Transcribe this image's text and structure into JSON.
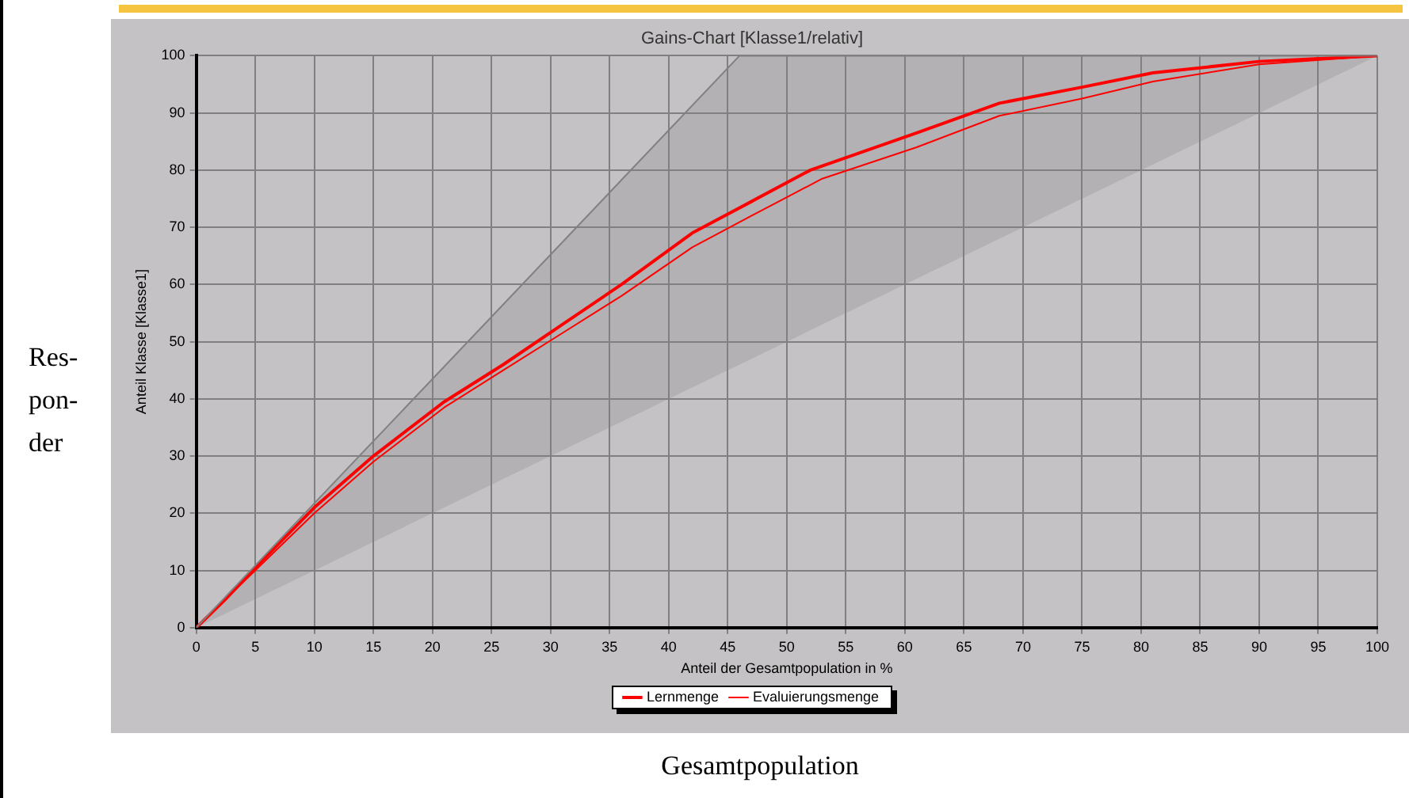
{
  "chart_data": {
    "type": "line",
    "title": "Gains-Chart [Klasse1/relativ]",
    "xlabel": "Anteil der Gesamtpopulation in %",
    "ylabel": "Anteil Klasse [Klasse1]",
    "xlim": [
      0,
      100
    ],
    "ylim": [
      0,
      100
    ],
    "xticks": [
      0,
      5,
      10,
      15,
      20,
      25,
      30,
      35,
      40,
      45,
      50,
      55,
      60,
      65,
      70,
      75,
      80,
      85,
      90,
      95,
      100
    ],
    "yticks": [
      0,
      10,
      20,
      30,
      40,
      50,
      60,
      70,
      80,
      90,
      100
    ],
    "grid": true,
    "legend": "bottom",
    "marker": "none",
    "line_style": "solid",
    "series": [
      {
        "color": "#808080",
        "x": [
          0,
          46,
          100
        ],
        "values": [
          0,
          100,
          100
        ],
        "lower": [
          0,
          46,
          100
        ],
        "upper": [
          0,
          100,
          100
        ]
      },
      {
        "name": "Lernmenge",
        "color": "#ff0000",
        "x": [
          0,
          2.5,
          5,
          10,
          15,
          21,
          26,
          31,
          36,
          42,
          47,
          52,
          61,
          68,
          75,
          81,
          90,
          100
        ],
        "values": [
          0,
          5,
          10.5,
          21,
          30,
          39.5,
          46,
          53,
          60,
          69,
          74.5,
          80,
          86.5,
          91.7,
          94.5,
          97,
          99,
          100
        ]
      },
      {
        "name": "Evaluierungsmenge",
        "color": "#ff0000",
        "x": [
          0,
          5,
          10,
          15,
          21,
          26,
          31,
          36,
          42,
          47,
          53,
          61,
          68,
          75,
          81,
          90,
          100
        ],
        "values": [
          0,
          10,
          20,
          29,
          38.5,
          45,
          51.5,
          58,
          66.5,
          72,
          78.5,
          84,
          89.5,
          92.5,
          95.5,
          98.5,
          100
        ]
      }
    ],
    "annotations": [
      "Res-pon-der",
      "Gesamtpopulation"
    ]
  }
}
